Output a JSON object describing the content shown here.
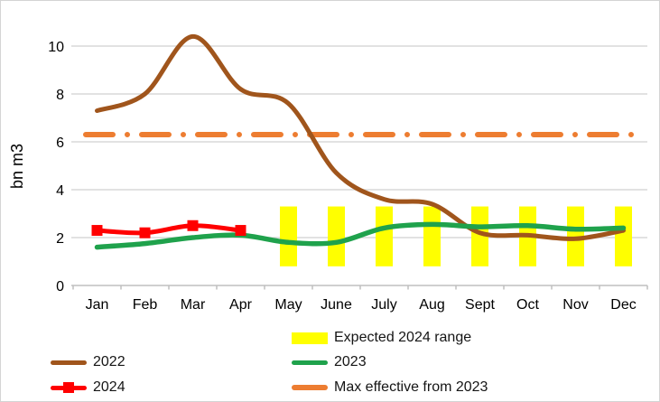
{
  "chart_data": {
    "type": "line",
    "title": "",
    "ylabel": "bn m3",
    "xlabel": "",
    "categories": [
      "Jan",
      "Feb",
      "Mar",
      "Apr",
      "May",
      "June",
      "July",
      "Aug",
      "Sept",
      "Oct",
      "Nov",
      "Dec"
    ],
    "yticks": [
      0,
      2,
      4,
      6,
      8,
      10
    ],
    "ylim": [
      0,
      11
    ],
    "grid": true,
    "legend_position": "bottom",
    "series": [
      {
        "name": "2022",
        "type": "line",
        "color": "#A0551C",
        "values": [
          7.3,
          8.0,
          10.4,
          8.2,
          7.6,
          4.7,
          3.6,
          3.4,
          2.2,
          2.1,
          1.95,
          2.3
        ]
      },
      {
        "name": "2023",
        "type": "line",
        "color": "#1FA24C",
        "values": [
          1.6,
          1.75,
          2.0,
          2.1,
          1.8,
          1.8,
          2.4,
          2.55,
          2.45,
          2.5,
          2.35,
          2.4
        ]
      },
      {
        "name": "2024",
        "type": "line",
        "marker": "square",
        "color": "#FF0000",
        "values": [
          2.3,
          2.2,
          2.5,
          2.3
        ]
      },
      {
        "name": "Max effective from 2023",
        "type": "constant-line",
        "style": "dash-dot",
        "color": "#ED7D31",
        "value": 6.3
      },
      {
        "name": "Expected 2024 range",
        "type": "range-bar",
        "color": "#FFFF00",
        "low": 0.8,
        "high": 3.3,
        "from_month": "May",
        "to_month": "Dec"
      }
    ],
    "colors": {
      "gridline": "#D9D9D9",
      "axis": "#BFBFBF",
      "text": "#000000"
    }
  }
}
